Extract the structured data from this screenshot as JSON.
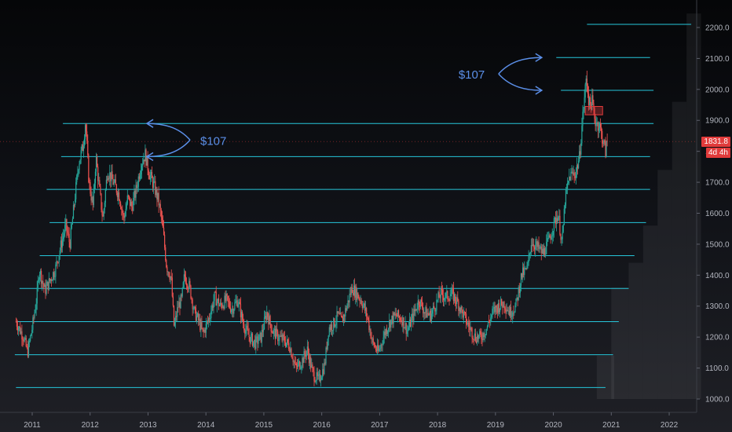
{
  "chart_data": {
    "type": "candlestick",
    "x_axis": {
      "ticks": [
        "2011",
        "2012",
        "2013",
        "2014",
        "2015",
        "2016",
        "2017",
        "2018",
        "2019",
        "2020",
        "2021",
        "2022"
      ]
    },
    "y_axis": {
      "ticks": [
        "1000.0",
        "1100.0",
        "1200.0",
        "1300.0",
        "1400.0",
        "1500.0",
        "1600.0",
        "1700.0",
        "1800.0",
        "1900.0",
        "2000.0",
        "2100.0",
        "2200.0"
      ],
      "range": [
        965,
        2245
      ]
    },
    "current_price": "1831.8",
    "countdown": "4d 4h",
    "grid": false,
    "colors": {
      "up": "#26a69a",
      "down": "#ef5350",
      "level_line": "#26c6da",
      "annotation": "#5b8fe8",
      "price_tag": "#e13b3b"
    },
    "horizontal_levels": [
      {
        "price": 1037,
        "from": "2010.72",
        "to": "2020.90"
      },
      {
        "price": 1143,
        "from": "2010.70",
        "to": "2021.03"
      },
      {
        "price": 1250,
        "from": "2010.72",
        "to": "2021.13"
      },
      {
        "price": 1357,
        "from": "2010.78",
        "to": "2021.30"
      },
      {
        "price": 1463,
        "from": "2011.13",
        "to": "2021.40"
      },
      {
        "price": 1570,
        "from": "2011.30",
        "to": "2021.60"
      },
      {
        "price": 1677,
        "from": "2011.25",
        "to": "2021.67"
      },
      {
        "price": 1783,
        "from": "2011.50",
        "to": "2021.67"
      },
      {
        "price": 1890,
        "from": "2011.53",
        "to": "2021.73"
      },
      {
        "price": 1997,
        "from": "2020.13",
        "to": "2021.73"
      },
      {
        "price": 2103,
        "from": "2020.05",
        "to": "2021.67"
      },
      {
        "price": 2210,
        "from": "2020.58",
        "to": "2022.38"
      }
    ],
    "annotations": [
      {
        "text": "$107",
        "date": "2012.98",
        "from_price": 1890,
        "to_price": 1783
      },
      {
        "text": "$107",
        "date": "2019.80",
        "from_price": 2103,
        "to_price": 1997
      }
    ],
    "price_path": [
      [
        "2010.72",
        1250
      ],
      [
        "2010.85",
        1200
      ],
      [
        "2010.92",
        1150
      ],
      [
        "2011.00",
        1230
      ],
      [
        "2011.08",
        1330
      ],
      [
        "2011.12",
        1420
      ],
      [
        "2011.22",
        1350
      ],
      [
        "2011.30",
        1380
      ],
      [
        "2011.40",
        1420
      ],
      [
        "2011.50",
        1500
      ],
      [
        "2011.58",
        1560
      ],
      [
        "2011.65",
        1500
      ],
      [
        "2011.72",
        1620
      ],
      [
        "2011.80",
        1760
      ],
      [
        "2011.88",
        1820
      ],
      [
        "2011.92",
        1900
      ],
      [
        "2011.98",
        1700
      ],
      [
        "2012.05",
        1620
      ],
      [
        "2012.10",
        1780
      ],
      [
        "2012.17",
        1660
      ],
      [
        "2012.22",
        1580
      ],
      [
        "2012.30",
        1740
      ],
      [
        "2012.40",
        1700
      ],
      [
        "2012.50",
        1660
      ],
      [
        "2012.58",
        1580
      ],
      [
        "2012.65",
        1650
      ],
      [
        "2012.72",
        1620
      ],
      [
        "2012.80",
        1680
      ],
      [
        "2012.88",
        1760
      ],
      [
        "2012.95",
        1790
      ],
      [
        "2013.02",
        1730
      ],
      [
        "2013.10",
        1690
      ],
      [
        "2013.18",
        1640
      ],
      [
        "2013.25",
        1560
      ],
      [
        "2013.32",
        1430
      ],
      [
        "2013.40",
        1390
      ],
      [
        "2013.45",
        1230
      ],
      [
        "2013.52",
        1300
      ],
      [
        "2013.58",
        1320
      ],
      [
        "2013.63",
        1400
      ],
      [
        "2013.72",
        1360
      ],
      [
        "2013.80",
        1280
      ],
      [
        "2013.88",
        1250
      ],
      [
        "2013.95",
        1210
      ],
      [
        "2014.05",
        1260
      ],
      [
        "2014.15",
        1330
      ],
      [
        "2014.25",
        1300
      ],
      [
        "2014.35",
        1320
      ],
      [
        "2014.45",
        1290
      ],
      [
        "2014.55",
        1320
      ],
      [
        "2014.65",
        1240
      ],
      [
        "2014.75",
        1200
      ],
      [
        "2014.85",
        1180
      ],
      [
        "2014.95",
        1200
      ],
      [
        "2015.05",
        1280
      ],
      [
        "2015.15",
        1220
      ],
      [
        "2015.25",
        1200
      ],
      [
        "2015.35",
        1190
      ],
      [
        "2015.45",
        1170
      ],
      [
        "2015.55",
        1100
      ],
      [
        "2015.65",
        1120
      ],
      [
        "2015.75",
        1160
      ],
      [
        "2015.85",
        1080
      ],
      [
        "2015.95",
        1060
      ],
      [
        "2016.05",
        1110
      ],
      [
        "2016.12",
        1230
      ],
      [
        "2016.20",
        1240
      ],
      [
        "2016.28",
        1270
      ],
      [
        "2016.35",
        1250
      ],
      [
        "2016.45",
        1310
      ],
      [
        "2016.52",
        1360
      ],
      [
        "2016.60",
        1340
      ],
      [
        "2016.68",
        1320
      ],
      [
        "2016.78",
        1270
      ],
      [
        "2016.88",
        1180
      ],
      [
        "2016.98",
        1150
      ],
      [
        "2017.08",
        1210
      ],
      [
        "2017.18",
        1250
      ],
      [
        "2017.28",
        1270
      ],
      [
        "2017.38",
        1260
      ],
      [
        "2017.48",
        1220
      ],
      [
        "2017.58",
        1270
      ],
      [
        "2017.68",
        1320
      ],
      [
        "2017.78",
        1280
      ],
      [
        "2017.88",
        1270
      ],
      [
        "2017.98",
        1310
      ],
      [
        "2018.05",
        1340
      ],
      [
        "2018.15",
        1330
      ],
      [
        "2018.25",
        1340
      ],
      [
        "2018.35",
        1310
      ],
      [
        "2018.45",
        1270
      ],
      [
        "2018.55",
        1230
      ],
      [
        "2018.65",
        1200
      ],
      [
        "2018.75",
        1200
      ],
      [
        "2018.85",
        1230
      ],
      [
        "2018.95",
        1280
      ],
      [
        "2019.05",
        1300
      ],
      [
        "2019.15",
        1310
      ],
      [
        "2019.25",
        1280
      ],
      [
        "2019.35",
        1300
      ],
      [
        "2019.45",
        1400
      ],
      [
        "2019.55",
        1420
      ],
      [
        "2019.62",
        1510
      ],
      [
        "2019.72",
        1490
      ],
      [
        "2019.82",
        1470
      ],
      [
        "2019.92",
        1510
      ],
      [
        "2020.00",
        1560
      ],
      [
        "2020.08",
        1600
      ],
      [
        "2020.15",
        1500
      ],
      [
        "2020.20",
        1640
      ],
      [
        "2020.28",
        1720
      ],
      [
        "2020.38",
        1730
      ],
      [
        "2020.45",
        1780
      ],
      [
        "2020.50",
        1900
      ],
      [
        "2020.57",
        2040
      ],
      [
        "2020.62",
        1950
      ],
      [
        "2020.67",
        1960
      ],
      [
        "2020.72",
        1900
      ],
      [
        "2020.80",
        1880
      ],
      [
        "2020.85",
        1840
      ],
      [
        "2020.90",
        1800
      ],
      [
        "2020.93",
        1831.8
      ]
    ]
  }
}
